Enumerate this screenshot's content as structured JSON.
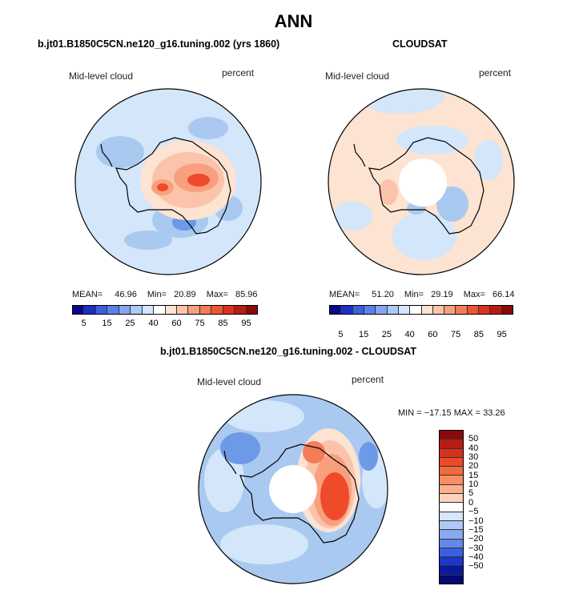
{
  "figure": {
    "title": "ANN",
    "panel1_title": "b.jt01.B1850C5CN.ne120_g16.tuning.002 (yrs 1860)",
    "panel2_title": "CLOUDSAT",
    "panel3_title": "b.jt01.B1850C5CN.ne120_g16.tuning.002 - CLOUDSAT",
    "variable": "Mid-level cloud",
    "units": "percent"
  },
  "panel1_stats": {
    "mean_label": "MEAN=",
    "mean": "46.96",
    "min_label": "Min=",
    "min": "20.89",
    "max_label": "Max=",
    "max": "85.96"
  },
  "panel2_stats": {
    "mean_label": "MEAN=",
    "mean": "51.20",
    "min_label": "Min=",
    "min": "29.19",
    "max_label": "Max=",
    "max": "66.14"
  },
  "panel3_stats": {
    "text": "MIN = −17.15 MAX =  33.26"
  },
  "colors": {
    "ocean_blue": "#d4e6f9",
    "land_orange": "#fde3d2",
    "mid_blue": "#a9c9f0",
    "strong_blue": "#6d9ae6",
    "strong_red": "#ef4a2a",
    "mid_red": "#f7a07e"
  },
  "chart_data": [
    {
      "type": "heatmap",
      "title": "b.jt01.B1850C5CN.ne120_g16.tuning.002 (yrs 1860)",
      "variable": "Mid-level cloud",
      "units": "percent",
      "projection": "south polar stereographic",
      "colorbar_levels": [
        "5",
        "15",
        "25",
        "40",
        "60",
        "75",
        "85",
        "95"
      ],
      "colorbar_colors": [
        "#08088a",
        "#1d2fc4",
        "#3a5fe0",
        "#5b82e8",
        "#85a6ee",
        "#aec9f4",
        "#d6e6fb",
        "#ffffff",
        "#fde3d2",
        "#fbc4aa",
        "#f8a07e",
        "#f47c56",
        "#ec5632",
        "#dc3320",
        "#b81d12",
        "#8a0a0a"
      ],
      "mean": 46.96,
      "min": 20.89,
      "max": 85.96
    },
    {
      "type": "heatmap",
      "title": "CLOUDSAT",
      "variable": "Mid-level cloud",
      "units": "percent",
      "projection": "south polar stereographic",
      "colorbar_levels": [
        "5",
        "15",
        "25",
        "40",
        "60",
        "75",
        "85",
        "95"
      ],
      "colorbar_colors": [
        "#08088a",
        "#1d2fc4",
        "#3a5fe0",
        "#5b82e8",
        "#85a6ee",
        "#aec9f4",
        "#d6e6fb",
        "#ffffff",
        "#fde3d2",
        "#fbc4aa",
        "#f8a07e",
        "#f47c56",
        "#ec5632",
        "#dc3320",
        "#b81d12",
        "#8a0a0a"
      ],
      "mean": 51.2,
      "min": 29.19,
      "max": 66.14
    },
    {
      "type": "heatmap",
      "title": "b.jt01.B1850C5CN.ne120_g16.tuning.002 - CLOUDSAT",
      "variable": "Mid-level cloud",
      "units": "percent",
      "projection": "south polar stereographic",
      "colorbar_levels": [
        "50",
        "40",
        "30",
        "20",
        "15",
        "10",
        "5",
        "0",
        "−5",
        "−10",
        "−15",
        "−20",
        "−30",
        "−40",
        "−50"
      ],
      "colorbar_colors": [
        "#8a0a0a",
        "#b81d12",
        "#d8301c",
        "#ec4a26",
        "#f46a3c",
        "#f88e62",
        "#fbb08c",
        "#fdd2bc",
        "#ffffff",
        "#d6e6fb",
        "#aec9f4",
        "#8aaaf0",
        "#6488ea",
        "#3a5fe0",
        "#1d35c8",
        "#0a1a9a",
        "#08086e"
      ],
      "min": -17.15,
      "max": 33.26
    }
  ]
}
